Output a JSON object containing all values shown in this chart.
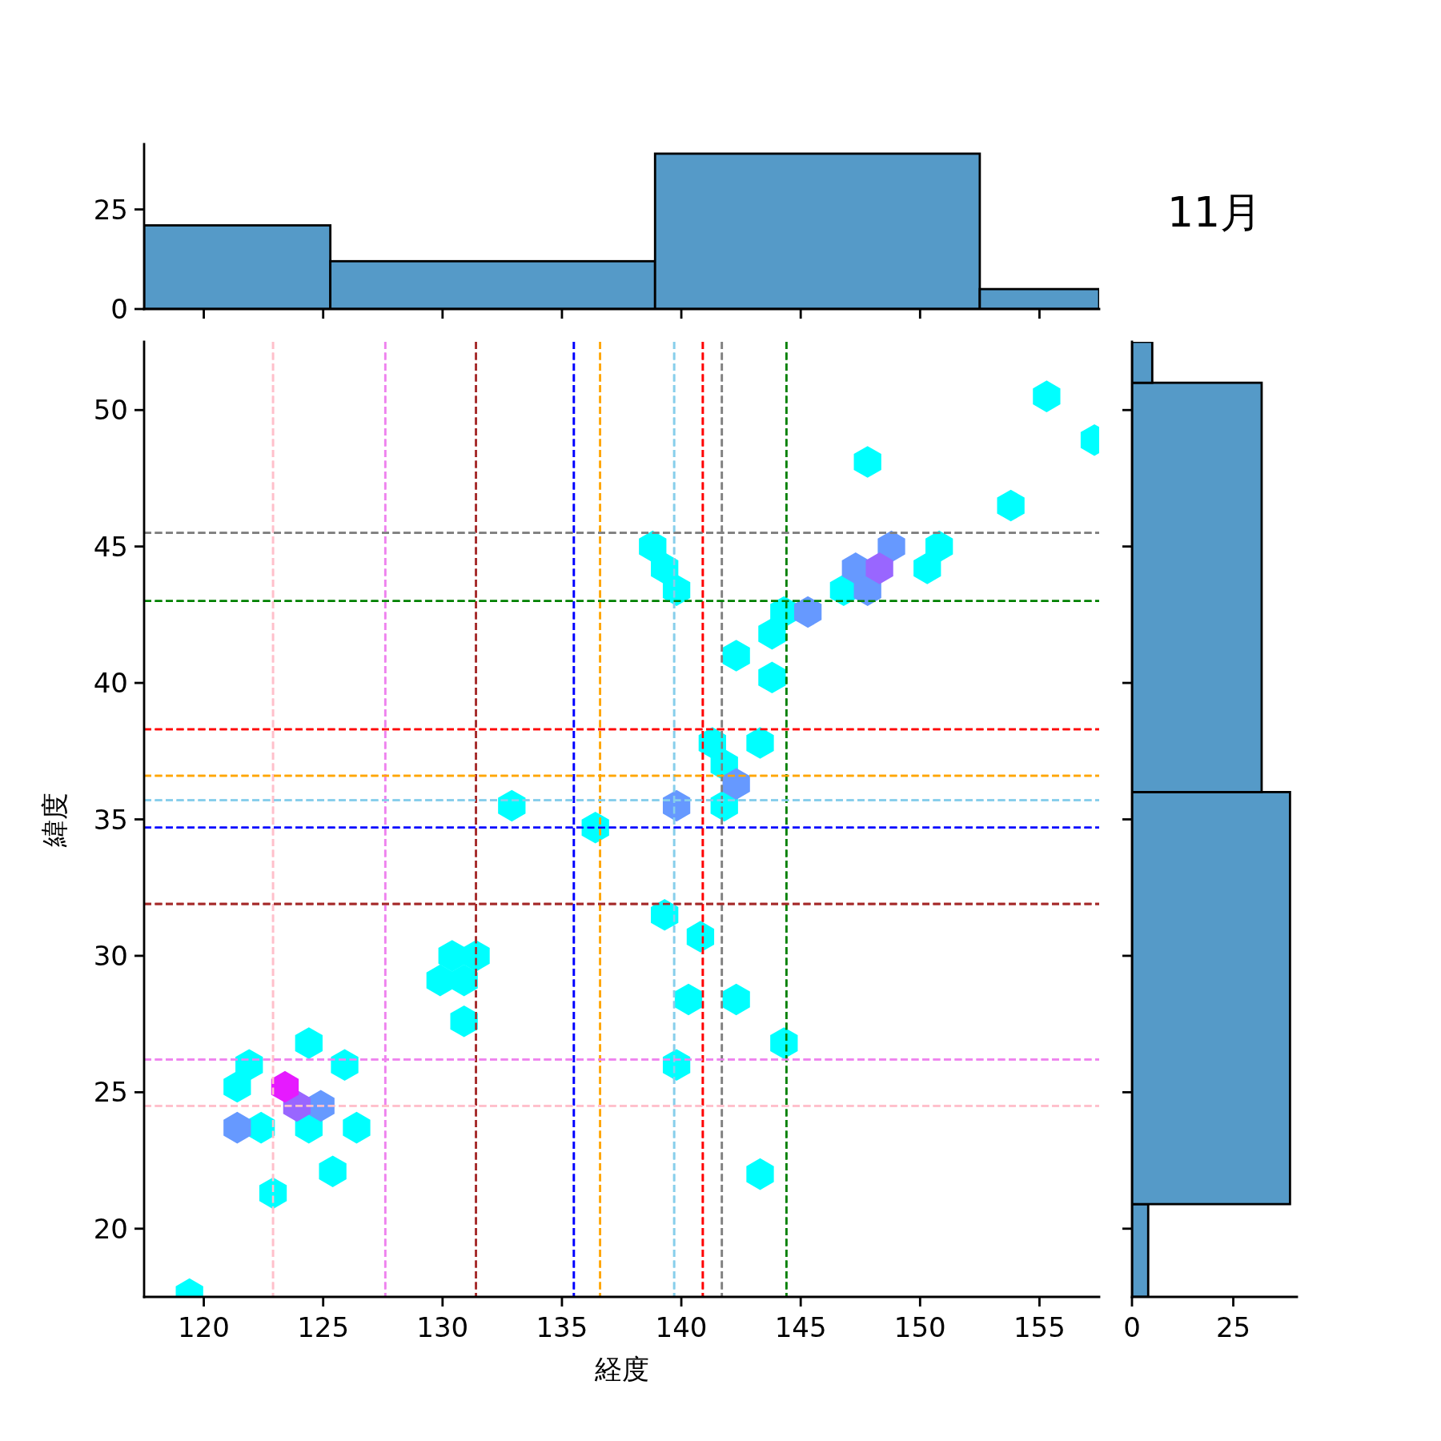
{
  "chart_data": [
    {
      "type": "histogram",
      "bins": [
        117.5,
        125.3,
        138.9,
        152.5,
        157.5
      ],
      "values": [
        21,
        12,
        39,
        5
      ],
      "color": "#559ac8",
      "xlim": [
        117.5,
        157.5
      ],
      "xticks": [
        120,
        125,
        130,
        135,
        140,
        145,
        150,
        155
      ],
      "ylim": [
        0,
        41.4
      ],
      "yticks": [
        0,
        25
      ],
      "tick_labels": "y"
    },
    {
      "type": "scatter",
      "xlabel": "経度",
      "ylabel": "緯度",
      "xlim": [
        117.5,
        157.5
      ],
      "ylim": [
        17.5,
        52.5
      ],
      "xticks": [
        120,
        125,
        130,
        135,
        140,
        145,
        150,
        155
      ],
      "yticks": [
        20,
        25,
        30,
        35,
        40,
        45,
        50
      ],
      "x": [
        119.4,
        121.9,
        121.4,
        122.4,
        122.9,
        124.4,
        124.4,
        125.9,
        125.4,
        126.4,
        129.9,
        130.4,
        130.9,
        131.4,
        130.9,
        132.9,
        136.4,
        138.8,
        139.3,
        139.8,
        139.3,
        140.8,
        140.3,
        142.3,
        139.8,
        143.3,
        144.3,
        141.3,
        141.8,
        143.3,
        141.8,
        142.3,
        143.8,
        144.3,
        143.8,
        146.8,
        147.8,
        150.3,
        150.8,
        153.8,
        155.3,
        157.3,
        121.4,
        124.9,
        139.8,
        142.3,
        145.3,
        147.3,
        148.8,
        147.8,
        123.9,
        148.3,
        123.4
      ],
      "values": [
        17.6,
        26.0,
        25.2,
        23.7,
        21.3,
        26.8,
        23.7,
        26.0,
        22.1,
        23.7,
        29.1,
        30.0,
        29.1,
        30.0,
        27.6,
        35.5,
        34.7,
        45.0,
        44.2,
        43.4,
        31.5,
        30.7,
        28.4,
        28.4,
        26.0,
        22.0,
        26.8,
        37.8,
        37.0,
        37.8,
        35.5,
        41.0,
        41.8,
        42.6,
        40.2,
        43.4,
        48.1,
        44.2,
        45.0,
        46.5,
        50.5,
        48.9,
        23.7,
        24.5,
        35.5,
        36.3,
        42.6,
        44.2,
        45.0,
        43.4,
        24.5,
        44.2,
        25.2
      ],
      "colors": [
        "#00ffff",
        "#00ffff",
        "#00ffff",
        "#00ffff",
        "#00ffff",
        "#00ffff",
        "#00ffff",
        "#00ffff",
        "#00ffff",
        "#00ffff",
        "#00ffff",
        "#00ffff",
        "#00ffff",
        "#00ffff",
        "#00ffff",
        "#00ffff",
        "#00ffff",
        "#00ffff",
        "#00ffff",
        "#00ffff",
        "#00ffff",
        "#00ffff",
        "#00ffff",
        "#00ffff",
        "#00ffff",
        "#00ffff",
        "#00ffff",
        "#00ffff",
        "#00ffff",
        "#00ffff",
        "#00ffff",
        "#00ffff",
        "#00ffff",
        "#00ffff",
        "#00ffff",
        "#00ffff",
        "#00ffff",
        "#00ffff",
        "#00ffff",
        "#00ffff",
        "#00ffff",
        "#00ffff",
        "#6699ff",
        "#6699ff",
        "#6699ff",
        "#6699ff",
        "#6699ff",
        "#6699ff",
        "#6699ff",
        "#6699ff",
        "#9966ff",
        "#9966ff",
        "#e61aff"
      ],
      "ref_lines": [
        {
          "axis": "x",
          "value": 122.9,
          "color": "#ffc0cb",
          "line_style": "dashed"
        },
        {
          "axis": "x",
          "value": 127.6,
          "color": "#ee82ee",
          "line_style": "dashed"
        },
        {
          "axis": "x",
          "value": 131.4,
          "color": "#a52a2a",
          "line_style": "dashed"
        },
        {
          "axis": "x",
          "value": 135.5,
          "color": "#0000ff",
          "line_style": "dashed"
        },
        {
          "axis": "x",
          "value": 136.6,
          "color": "#ffa500",
          "line_style": "dashed"
        },
        {
          "axis": "x",
          "value": 139.7,
          "color": "#87ceeb",
          "line_style": "dashed"
        },
        {
          "axis": "x",
          "value": 140.9,
          "color": "#ff0000",
          "line_style": "dashed"
        },
        {
          "axis": "x",
          "value": 141.7,
          "color": "#808080",
          "line_style": "dashed"
        },
        {
          "axis": "x",
          "value": 144.4,
          "color": "#008000",
          "line_style": "dashed"
        },
        {
          "axis": "y",
          "value": 24.5,
          "color": "#ffc0cb",
          "line_style": "dashed"
        },
        {
          "axis": "y",
          "value": 26.2,
          "color": "#ee82ee",
          "line_style": "dashed"
        },
        {
          "axis": "y",
          "value": 31.9,
          "color": "#a52a2a",
          "line_style": "dashed"
        },
        {
          "axis": "y",
          "value": 34.7,
          "color": "#0000ff",
          "line_style": "dashed"
        },
        {
          "axis": "y",
          "value": 36.6,
          "color": "#ffa500",
          "line_style": "dashed"
        },
        {
          "axis": "y",
          "value": 35.7,
          "color": "#87ceeb",
          "line_style": "dashed"
        },
        {
          "axis": "y",
          "value": 38.3,
          "color": "#ff0000",
          "line_style": "dashed"
        },
        {
          "axis": "y",
          "value": 45.5,
          "color": "#808080",
          "line_style": "dashed"
        },
        {
          "axis": "y",
          "value": 43.0,
          "color": "#008000",
          "line_style": "dashed"
        }
      ]
    },
    {
      "type": "histogram",
      "title": "11月",
      "orientation": "horizontal",
      "bins": [
        17.5,
        20.9,
        36.0,
        51.0,
        52.5
      ],
      "values": [
        4,
        39,
        32,
        5
      ],
      "color": "#559ac8",
      "xlim": [
        0,
        40.7
      ],
      "xticks": [
        0,
        25
      ],
      "ylim": [
        17.5,
        52.5
      ],
      "yticks": [
        20,
        25,
        30,
        35,
        40,
        45,
        50
      ],
      "tick_labels": "x"
    }
  ]
}
